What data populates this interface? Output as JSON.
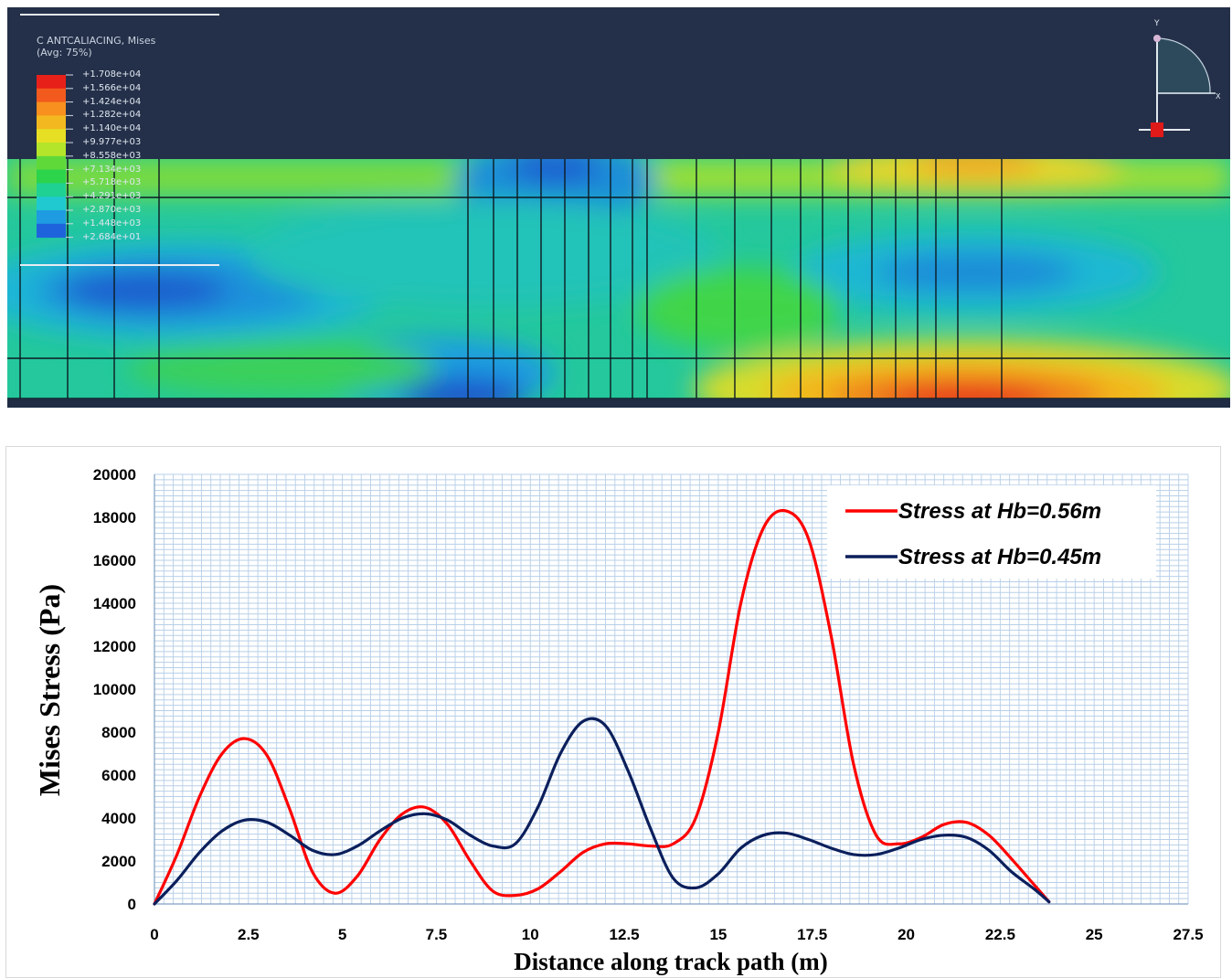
{
  "fea_panel": {
    "legend_title_line1": "C ANTCALIACING, Mises",
    "legend_title_line2": "(Avg: 75%)",
    "legend_labels": [
      "+1.708e+04",
      "+1.566e+04",
      "+1.424e+04",
      "+1.282e+04",
      "+1.140e+04",
      "+9.977e+03",
      "+8.558e+03",
      "+7.134e+03",
      "+5.718e+03",
      "+4.291e+03",
      "+2.870e+03",
      "+1.448e+03",
      "+2.684e+01"
    ],
    "legend_colors": [
      "#e8201a",
      "#f25a1e",
      "#f7901e",
      "#f3b81f",
      "#e7df23",
      "#b4e52a",
      "#5fd93a",
      "#2bd44b",
      "#1fd193",
      "#1fc9cf",
      "#1f9be2",
      "#1f63dc",
      "#1f2ac8"
    ],
    "triad_y": "Y",
    "triad_x": "X"
  },
  "chart_data": {
    "type": "line",
    "xlabel": "Distance along track path (m)",
    "ylabel": "Mises Stress (Pa)",
    "xlim": [
      0,
      27.5
    ],
    "ylim": [
      0,
      20000
    ],
    "xticks": [
      "0",
      "2.5",
      "5",
      "7.5",
      "10",
      "12.5",
      "15",
      "17.5",
      "20",
      "22.5",
      "25",
      "27.5"
    ],
    "yticks": [
      "0",
      "2000",
      "4000",
      "6000",
      "8000",
      "10000",
      "12000",
      "14000",
      "16000",
      "18000",
      "20000"
    ],
    "grid": true,
    "legend_position": "top-right",
    "colors": {
      "series1": "#ff0000",
      "series2": "#0b1f5c"
    },
    "series": [
      {
        "name": "Stress at Hb=0.56m",
        "x": [
          0,
          0.6,
          1.2,
          1.8,
          2.4,
          3.0,
          3.6,
          4.2,
          4.8,
          5.4,
          6.0,
          6.6,
          7.2,
          7.8,
          8.4,
          9.0,
          9.6,
          10.2,
          10.8,
          11.4,
          12.0,
          12.6,
          13.2,
          13.8,
          14.4,
          15.0,
          15.6,
          16.2,
          16.8,
          17.4,
          18.0,
          18.6,
          19.2,
          19.8,
          20.4,
          21.0,
          21.6,
          22.2,
          22.8,
          23.4,
          23.8
        ],
        "y": [
          0,
          2300,
          5000,
          7000,
          7700,
          6900,
          4400,
          1500,
          500,
          1300,
          3000,
          4200,
          4500,
          3700,
          2000,
          600,
          400,
          700,
          1500,
          2400,
          2800,
          2800,
          2700,
          2800,
          4000,
          8000,
          14000,
          17500,
          18300,
          17000,
          12500,
          6500,
          3200,
          2800,
          3100,
          3700,
          3800,
          3200,
          2100,
          900,
          100
        ]
      },
      {
        "name": "Stress at Hb=0.45m",
        "x": [
          0,
          0.6,
          1.2,
          1.8,
          2.4,
          3.0,
          3.6,
          4.2,
          4.8,
          5.4,
          6.0,
          6.6,
          7.2,
          7.8,
          8.4,
          9.0,
          9.6,
          10.2,
          10.8,
          11.4,
          12.0,
          12.6,
          13.2,
          13.8,
          14.4,
          15.0,
          15.6,
          16.2,
          16.8,
          17.4,
          18.0,
          18.6,
          19.2,
          19.8,
          20.4,
          21.0,
          21.6,
          22.2,
          22.8,
          23.4,
          23.8
        ],
        "y": [
          0,
          1100,
          2400,
          3400,
          3900,
          3800,
          3200,
          2500,
          2300,
          2700,
          3400,
          4000,
          4200,
          3900,
          3200,
          2700,
          2800,
          4500,
          7000,
          8500,
          8300,
          6200,
          3500,
          1200,
          750,
          1400,
          2600,
          3200,
          3300,
          3000,
          2600,
          2300,
          2300,
          2600,
          3000,
          3200,
          3100,
          2500,
          1500,
          700,
          100
        ]
      }
    ]
  }
}
